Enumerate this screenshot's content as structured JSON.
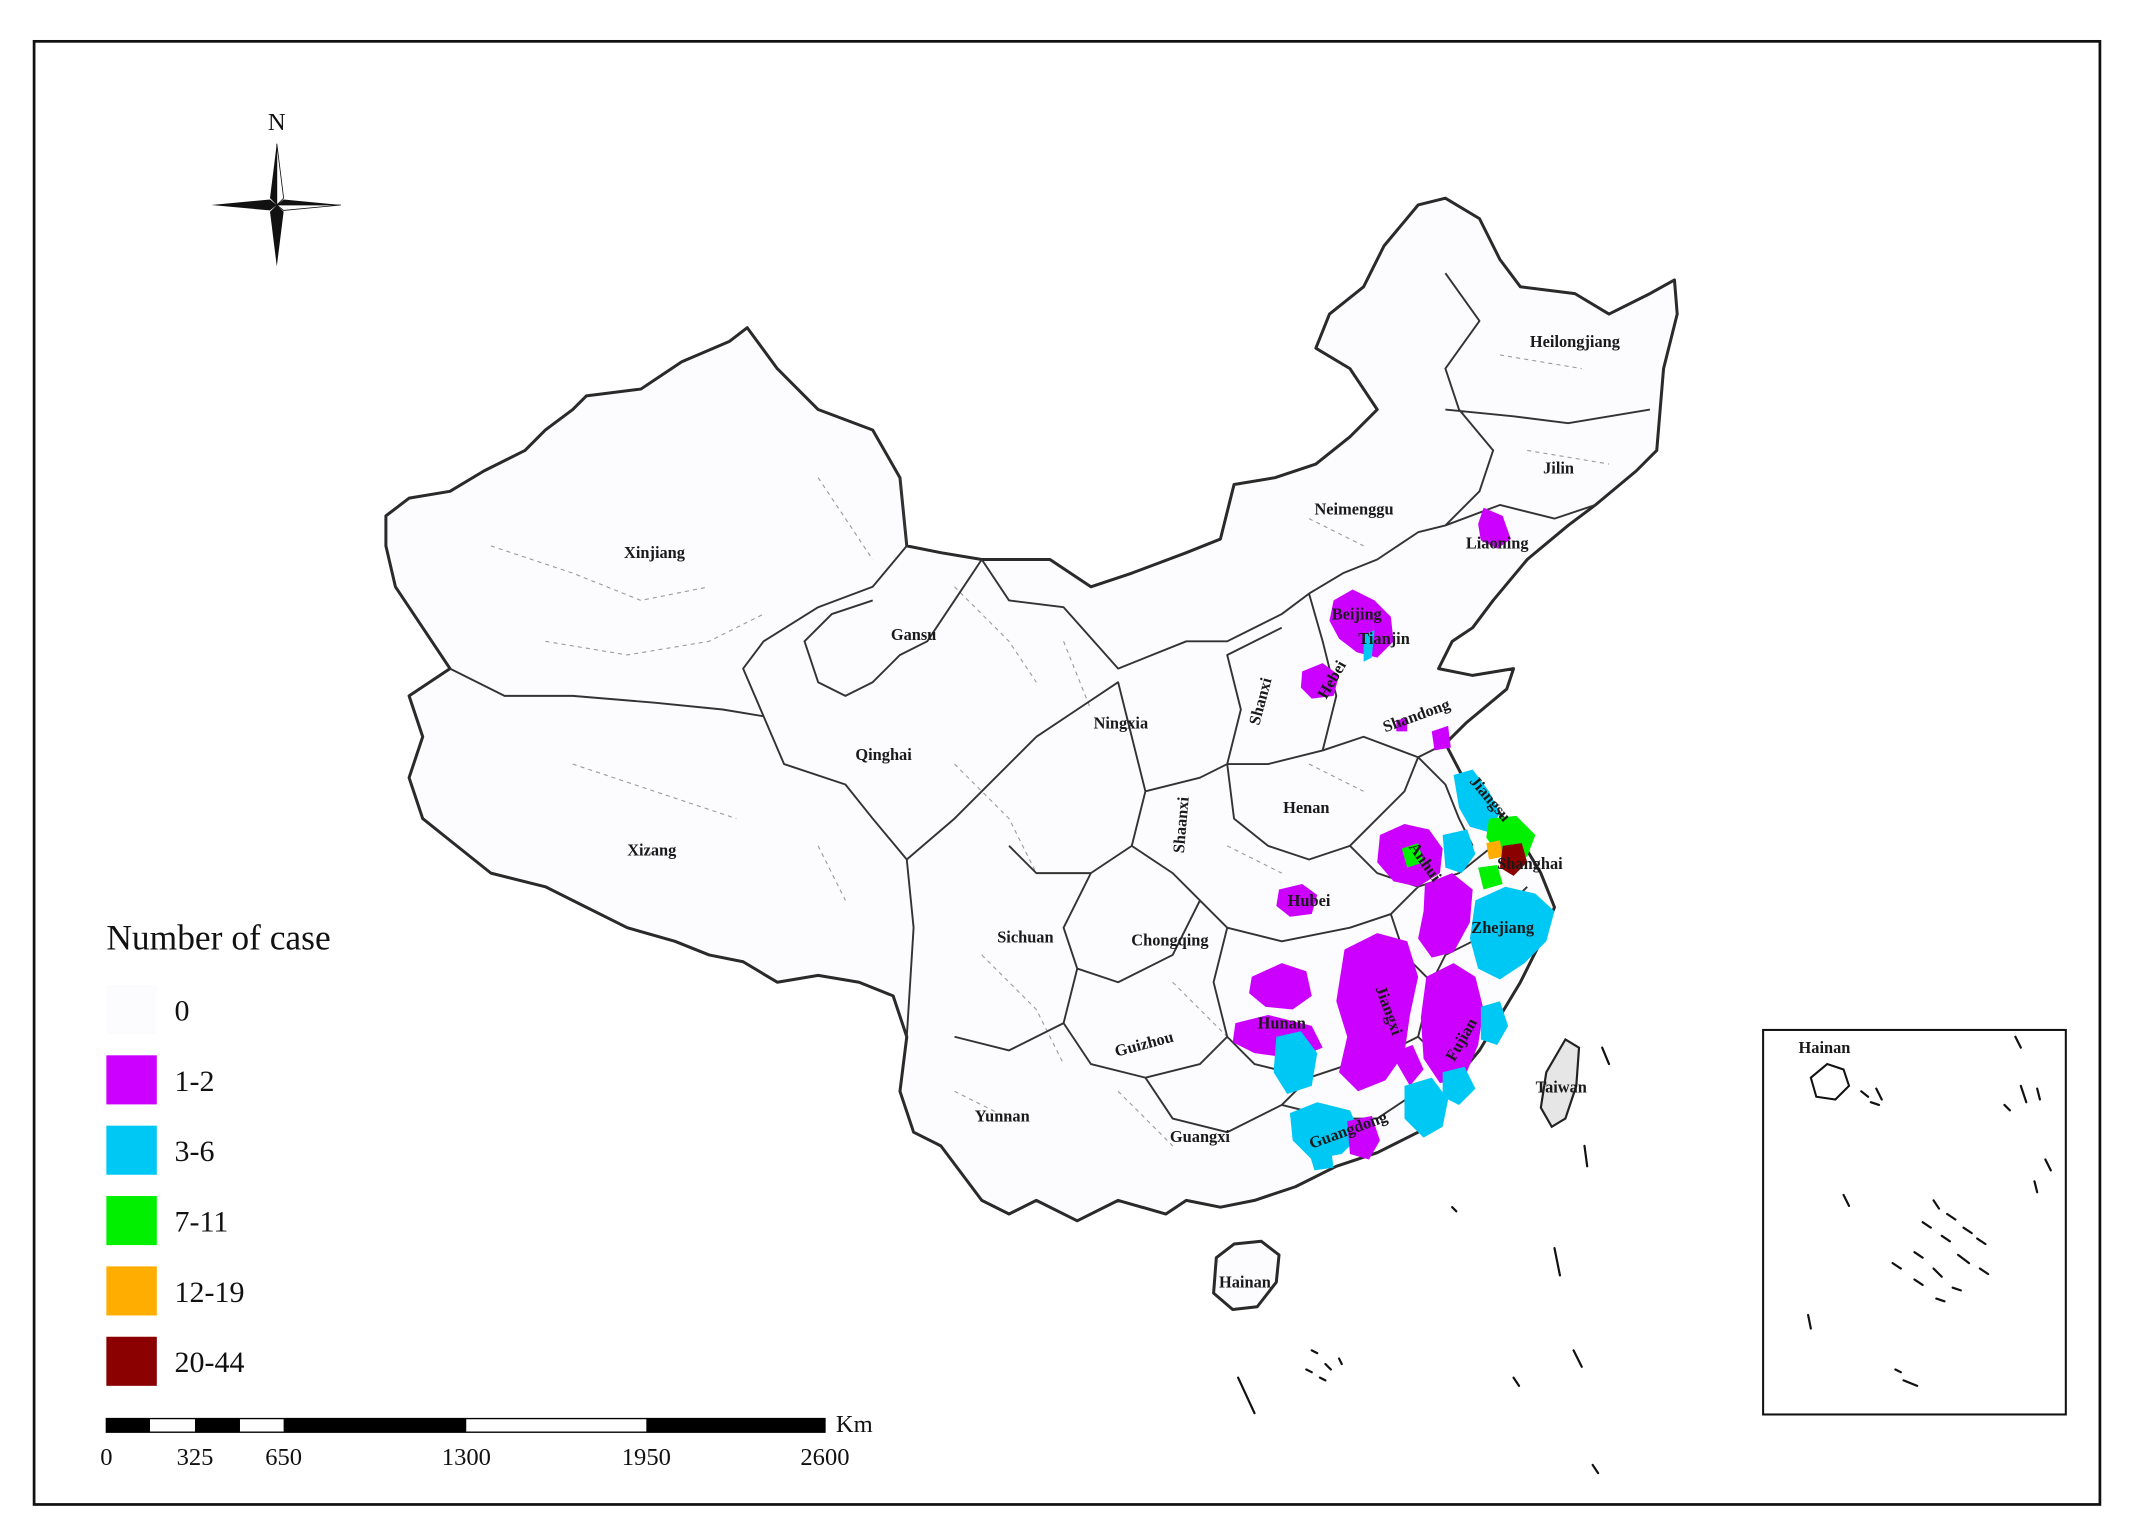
{
  "compass": {
    "north_label": "N"
  },
  "legend": {
    "title": "Number of case",
    "entries": [
      {
        "label": "0",
        "color": "#fcfbfd"
      },
      {
        "label": "1-2",
        "color": "#cc00ff"
      },
      {
        "label": "3-6",
        "color": "#00c8f5"
      },
      {
        "label": "7-11",
        "color": "#00f000"
      },
      {
        "label": "12-19",
        "color": "#ffad00"
      },
      {
        "label": "20-44",
        "color": "#8b0000"
      }
    ]
  },
  "scale_bar": {
    "unit": "Km",
    "labels": [
      "0",
      "325",
      "650",
      "1300",
      "1950",
      "2600"
    ]
  },
  "inset": {
    "label": "Hainan"
  },
  "provinces": [
    "Heilongjiang",
    "Jilin",
    "Liaoning",
    "Neimenggu",
    "Xinjiang",
    "Gansu",
    "Beijing",
    "Tianjin",
    "Hebei",
    "Shanxi",
    "Shandong",
    "Ningxia",
    "Qinghai",
    "Henan",
    "Shaanxi",
    "Jiangsu",
    "Anhui",
    "Shanghai",
    "Xizang",
    "Hubei",
    "Sichuan",
    "Chongqing",
    "Zhejiang",
    "Hunan",
    "Jiangxi",
    "Guizhou",
    "Fujian",
    "Taiwan",
    "Yunnan",
    "Guangxi",
    "Guangdong",
    "Hainan"
  ]
}
